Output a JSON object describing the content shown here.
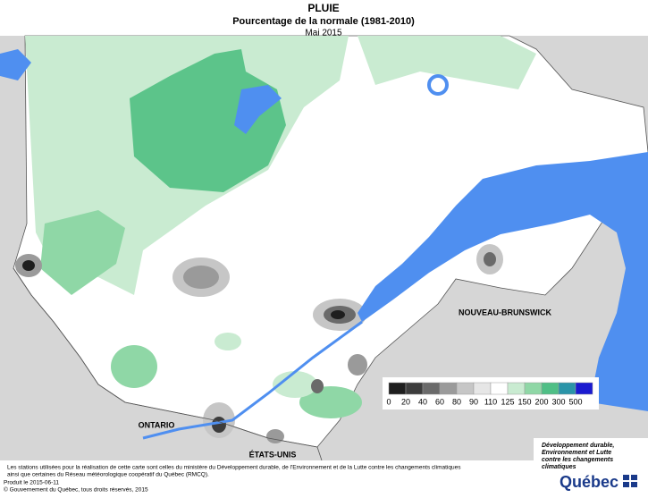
{
  "header": {
    "title": "PLUIE",
    "subtitle": "Pourcentage de la normale (1981-2010)",
    "date": "Mai 2015"
  },
  "map_labels": {
    "new_brunswick": "NOUVEAU-BRUNSWICK",
    "ontario": "ONTARIO",
    "usa": "ÉTATS-UNIS"
  },
  "legend": {
    "labels": [
      0,
      20,
      40,
      60,
      80,
      90,
      110,
      125,
      150,
      200,
      300,
      500
    ],
    "colors": [
      "#1e1e1e",
      "#3c3c3c",
      "#6a6a6a",
      "#9a9a9a",
      "#c6c6c6",
      "#e6e6e6",
      "#ffffff",
      "#c9ebd1",
      "#8fd7a6",
      "#4fbf86",
      "#2a94a8",
      "#1a1ad0"
    ]
  },
  "footer": {
    "notes": [
      "Les stations utilisées pour la réalisation de cette carte sont celles du ministère du Développement durable, de l'Environnement et de la Lutte contre les changements climatiques",
      "ainsi que certaines du Réseau météorologique coopératif du Québec (RMCQ)."
    ],
    "produced": "Produit le 2015-06-11",
    "copyright": "© Gouvernement du Québec, tous droits réservés, 2015"
  },
  "logo": {
    "lines": [
      "Développement durable,",
      "Environnement et Lutte",
      "contre les changements",
      "climatiques"
    ],
    "name": "Québec"
  }
}
